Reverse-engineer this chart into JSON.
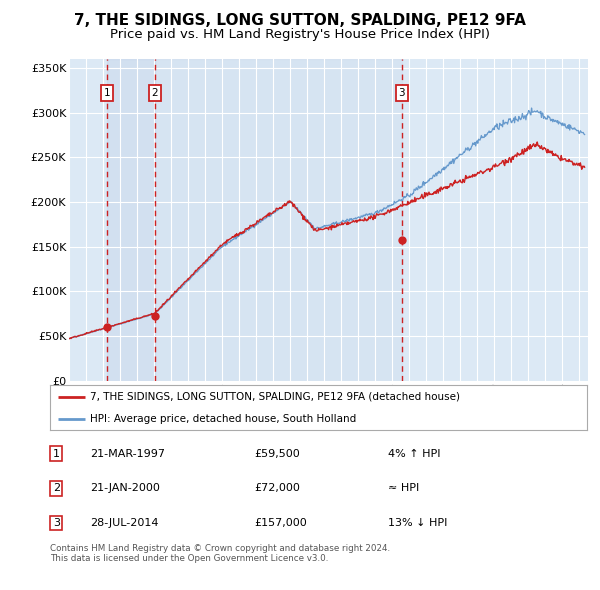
{
  "title": "7, THE SIDINGS, LONG SUTTON, SPALDING, PE12 9FA",
  "subtitle": "Price paid vs. HM Land Registry's House Price Index (HPI)",
  "legend_line1": "7, THE SIDINGS, LONG SUTTON, SPALDING, PE12 9FA (detached house)",
  "legend_line2": "HPI: Average price, detached house, South Holland",
  "transactions": [
    {
      "num": 1,
      "date": "21-MAR-1997",
      "price": 59500,
      "year": 1997.22,
      "note": "4% ↑ HPI"
    },
    {
      "num": 2,
      "date": "21-JAN-2000",
      "price": 72000,
      "year": 2000.05,
      "note": "≈ HPI"
    },
    {
      "num": 3,
      "date": "28-JUL-2014",
      "price": 157000,
      "year": 2014.56,
      "note": "13% ↓ HPI"
    }
  ],
  "hpi_color": "#6699cc",
  "price_color": "#cc2222",
  "dot_color": "#cc2222",
  "vline_color": "#cc2222",
  "box_color": "#cc2222",
  "background_color": "#dce9f5",
  "grid_color": "#ffffff",
  "ylim": [
    0,
    360000
  ],
  "xlim_start": 1995.0,
  "xlim_end": 2025.5,
  "footer": "Contains HM Land Registry data © Crown copyright and database right 2024.\nThis data is licensed under the Open Government Licence v3.0.",
  "title_fontsize": 11,
  "subtitle_fontsize": 9.5
}
